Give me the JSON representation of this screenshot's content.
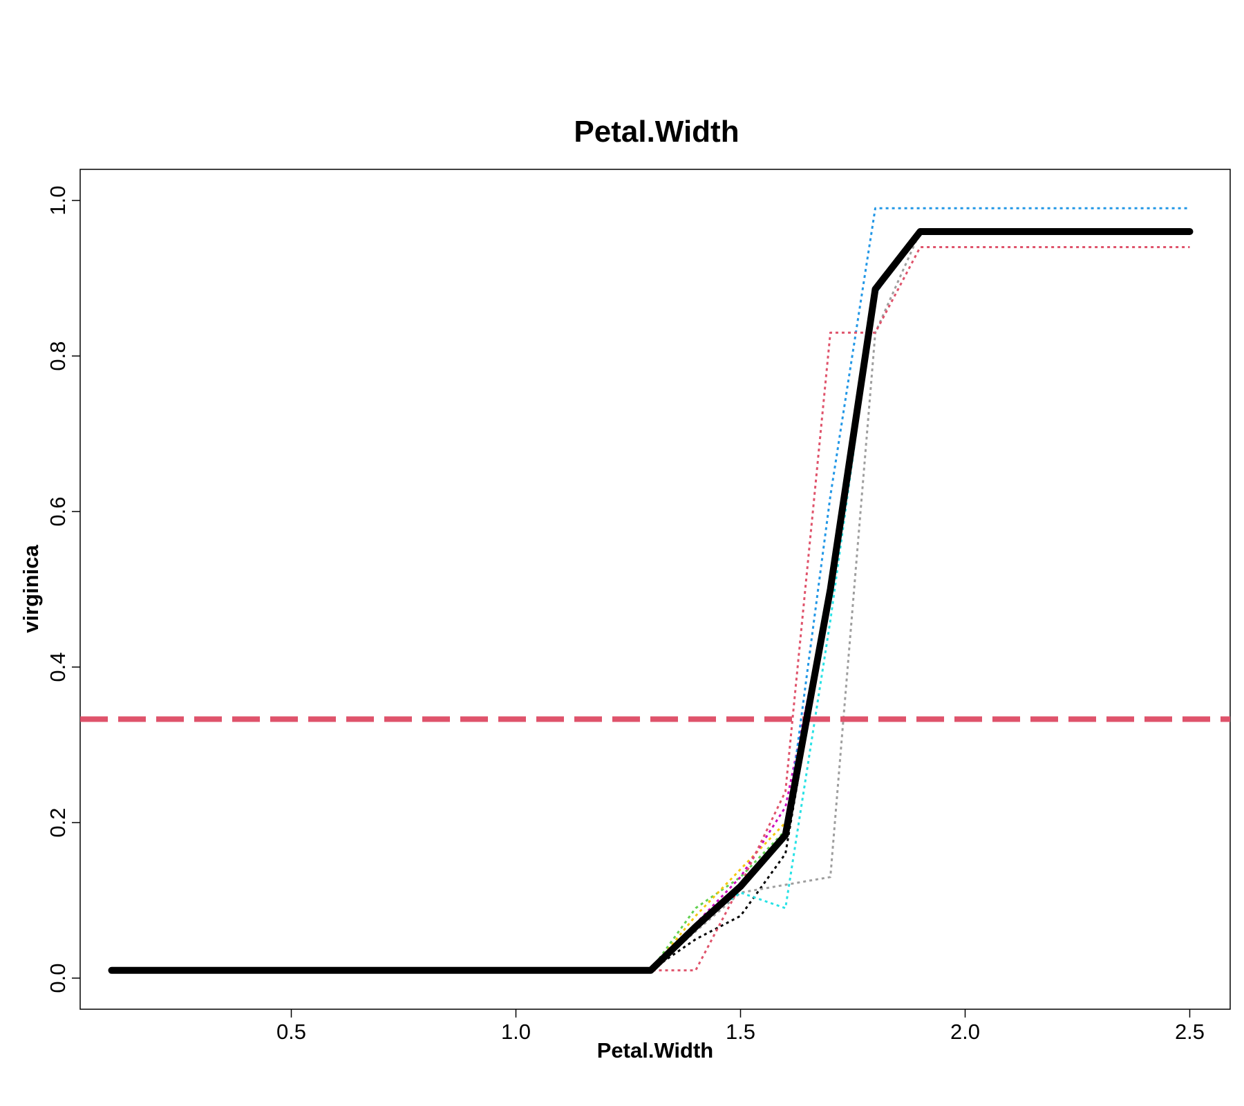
{
  "chart_data": {
    "type": "line",
    "title": "Petal.Width",
    "xlabel": "Petal.Width",
    "ylabel": "virginica",
    "xlim": [
      0.03,
      2.59
    ],
    "ylim": [
      -0.04,
      1.04
    ],
    "xticks": [
      "0.5",
      "1.0",
      "1.5",
      "2.0",
      "2.5"
    ],
    "yticks": [
      "0.0",
      "0.2",
      "0.4",
      "0.6",
      "0.8",
      "1.0"
    ],
    "grid": false,
    "x": [
      0.1,
      1.3,
      1.4,
      1.5,
      1.6,
      1.7,
      1.8,
      1.9,
      2.5
    ],
    "mean_series": {
      "values": [
        0.01,
        0.01,
        0.066,
        0.118,
        0.184,
        0.5,
        0.886,
        0.96,
        0.96
      ],
      "color": "#000000",
      "style": "solid"
    },
    "reference_line": {
      "y": 0.333,
      "color": "#DF536B",
      "style": "dashed"
    },
    "series": [
      {
        "color": "#61D04F",
        "style": "dotted",
        "values": [
          0.01,
          0.01,
          0.09,
          0.13,
          0.19,
          0.5,
          0.89,
          0.96,
          0.96
        ]
      },
      {
        "color": "#F5C710",
        "style": "dotted",
        "values": [
          0.01,
          0.01,
          0.08,
          0.14,
          0.2,
          0.5,
          0.89,
          0.96,
          0.96
        ]
      },
      {
        "color": "#CD0BBC",
        "style": "dotted",
        "values": [
          0.01,
          0.01,
          0.07,
          0.13,
          0.22,
          0.5,
          0.88,
          0.96,
          0.96
        ]
      },
      {
        "color": "#000000",
        "style": "dotted",
        "values": [
          0.01,
          0.01,
          0.05,
          0.08,
          0.16,
          0.5,
          0.88,
          0.96,
          0.96
        ]
      },
      {
        "color": "#9E9E9E",
        "style": "dotted",
        "values": [
          0.01,
          0.01,
          0.06,
          0.11,
          0.12,
          0.13,
          0.83,
          0.96,
          0.96
        ]
      },
      {
        "color": "#28E2E5",
        "style": "dotted",
        "values": [
          0.01,
          0.01,
          0.07,
          0.11,
          0.09,
          0.46,
          0.88,
          0.96,
          0.96
        ]
      },
      {
        "color": "#2297E6",
        "style": "dotted",
        "values": [
          0.01,
          0.01,
          0.07,
          0.12,
          0.18,
          0.62,
          0.99,
          0.99,
          0.99
        ]
      },
      {
        "color": "#DF536B",
        "style": "dotted",
        "values": [
          0.01,
          0.01,
          0.01,
          0.12,
          0.24,
          0.83,
          0.83,
          0.94,
          0.94
        ]
      }
    ]
  }
}
